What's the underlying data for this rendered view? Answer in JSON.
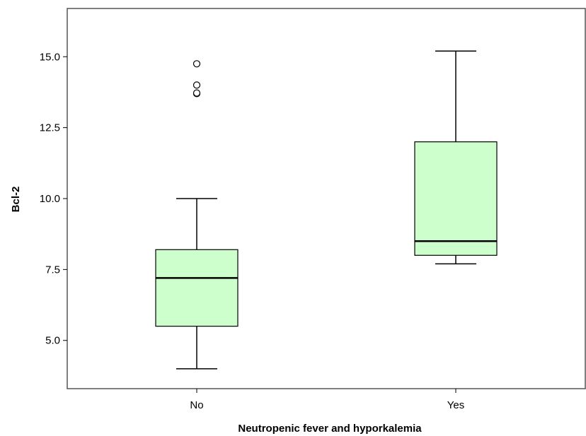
{
  "chart_data": {
    "type": "boxplot",
    "xlabel": "Neutropenic fever and hyporkalemia",
    "ylabel": "Bcl-2",
    "ylim": [
      3.3,
      16.7
    ],
    "yticks": [
      5.0,
      7.5,
      10.0,
      12.5,
      15.0
    ],
    "ytick_labels": [
      "5.0",
      "7.5",
      "10.0",
      "12.5",
      "15.0"
    ],
    "categories": [
      "No",
      "Yes"
    ],
    "box_fill": "#ccffcc",
    "box_stroke": "#000000",
    "grid": false,
    "series": [
      {
        "category": "No",
        "whisker_low": 4.0,
        "q1": 5.5,
        "median": 7.2,
        "q3": 8.2,
        "whisker_high": 10.0,
        "outliers": [
          13.7,
          13.72,
          14.0,
          14.75
        ]
      },
      {
        "category": "Yes",
        "whisker_low": 7.7,
        "q1": 8.0,
        "median": 8.5,
        "q3": 12.0,
        "whisker_high": 15.2,
        "outliers": []
      }
    ]
  }
}
